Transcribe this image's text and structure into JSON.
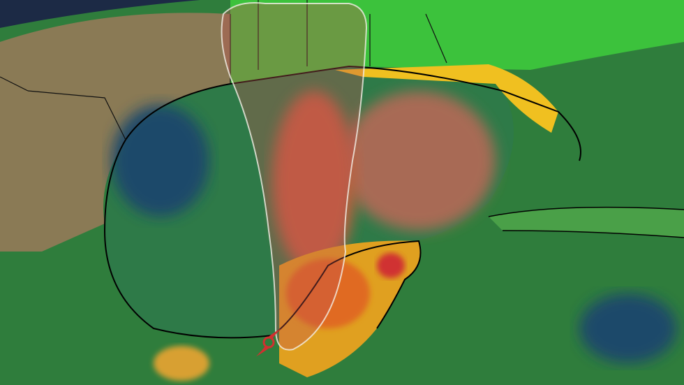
{
  "map": {
    "type": "rainfall-forecast",
    "colors": {
      "space": "#1c2a45",
      "land_terrain": "#8a7a55",
      "ocean": "#1d4a6a",
      "rain_light": "#2f8f3a",
      "rain_moderate": "#39c43a",
      "rain_heavy": "#e8c020",
      "rain_very_heavy": "#e07020",
      "rain_extreme": "#d03030",
      "cone_outline": "#f2efe6",
      "cone_fill": "#c05050",
      "borders": "#000000"
    },
    "icons": [
      "hurricane-icon"
    ]
  }
}
